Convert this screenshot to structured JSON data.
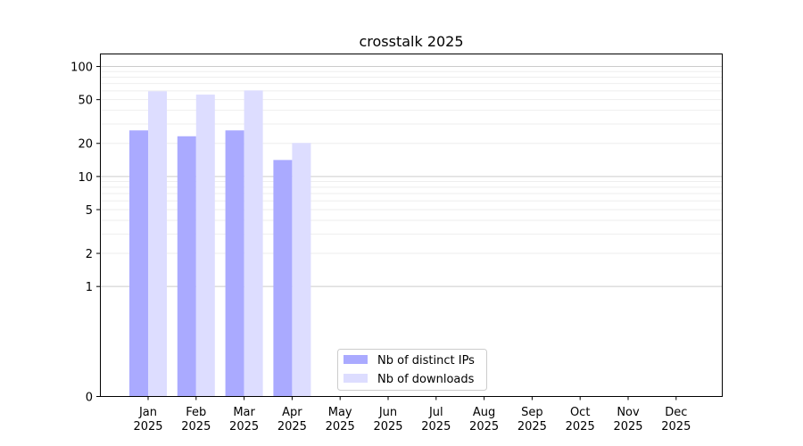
{
  "chart_data": {
    "type": "bar",
    "title": "crosstalk 2025",
    "xlabel": "",
    "ylabel": "",
    "y_scale": "symlog",
    "ylim": [
      0,
      130
    ],
    "y_ticks": [
      0,
      1,
      2,
      5,
      10,
      20,
      50,
      100
    ],
    "y_tick_labels": [
      "0",
      "1",
      "2",
      "5",
      "10",
      "20",
      "50",
      "100"
    ],
    "categories": [
      "Jan\n2025",
      "Feb\n2025",
      "Mar\n2025",
      "Apr\n2025",
      "May\n2025",
      "Jun\n2025",
      "Jul\n2025",
      "Aug\n2025",
      "Sep\n2025",
      "Oct\n2025",
      "Nov\n2025",
      "Dec\n2025"
    ],
    "series": [
      {
        "name": "Nb of distinct IPs",
        "color": "#aaaaff",
        "values": [
          26,
          23,
          26,
          14,
          0,
          0,
          0,
          0,
          0,
          0,
          0,
          0
        ]
      },
      {
        "name": "Nb of downloads",
        "color": "#ddddff",
        "values": [
          59,
          55,
          60,
          20,
          0,
          0,
          0,
          0,
          0,
          0,
          0,
          0
        ]
      }
    ],
    "grid": true,
    "legend_position": "bottom-center"
  }
}
